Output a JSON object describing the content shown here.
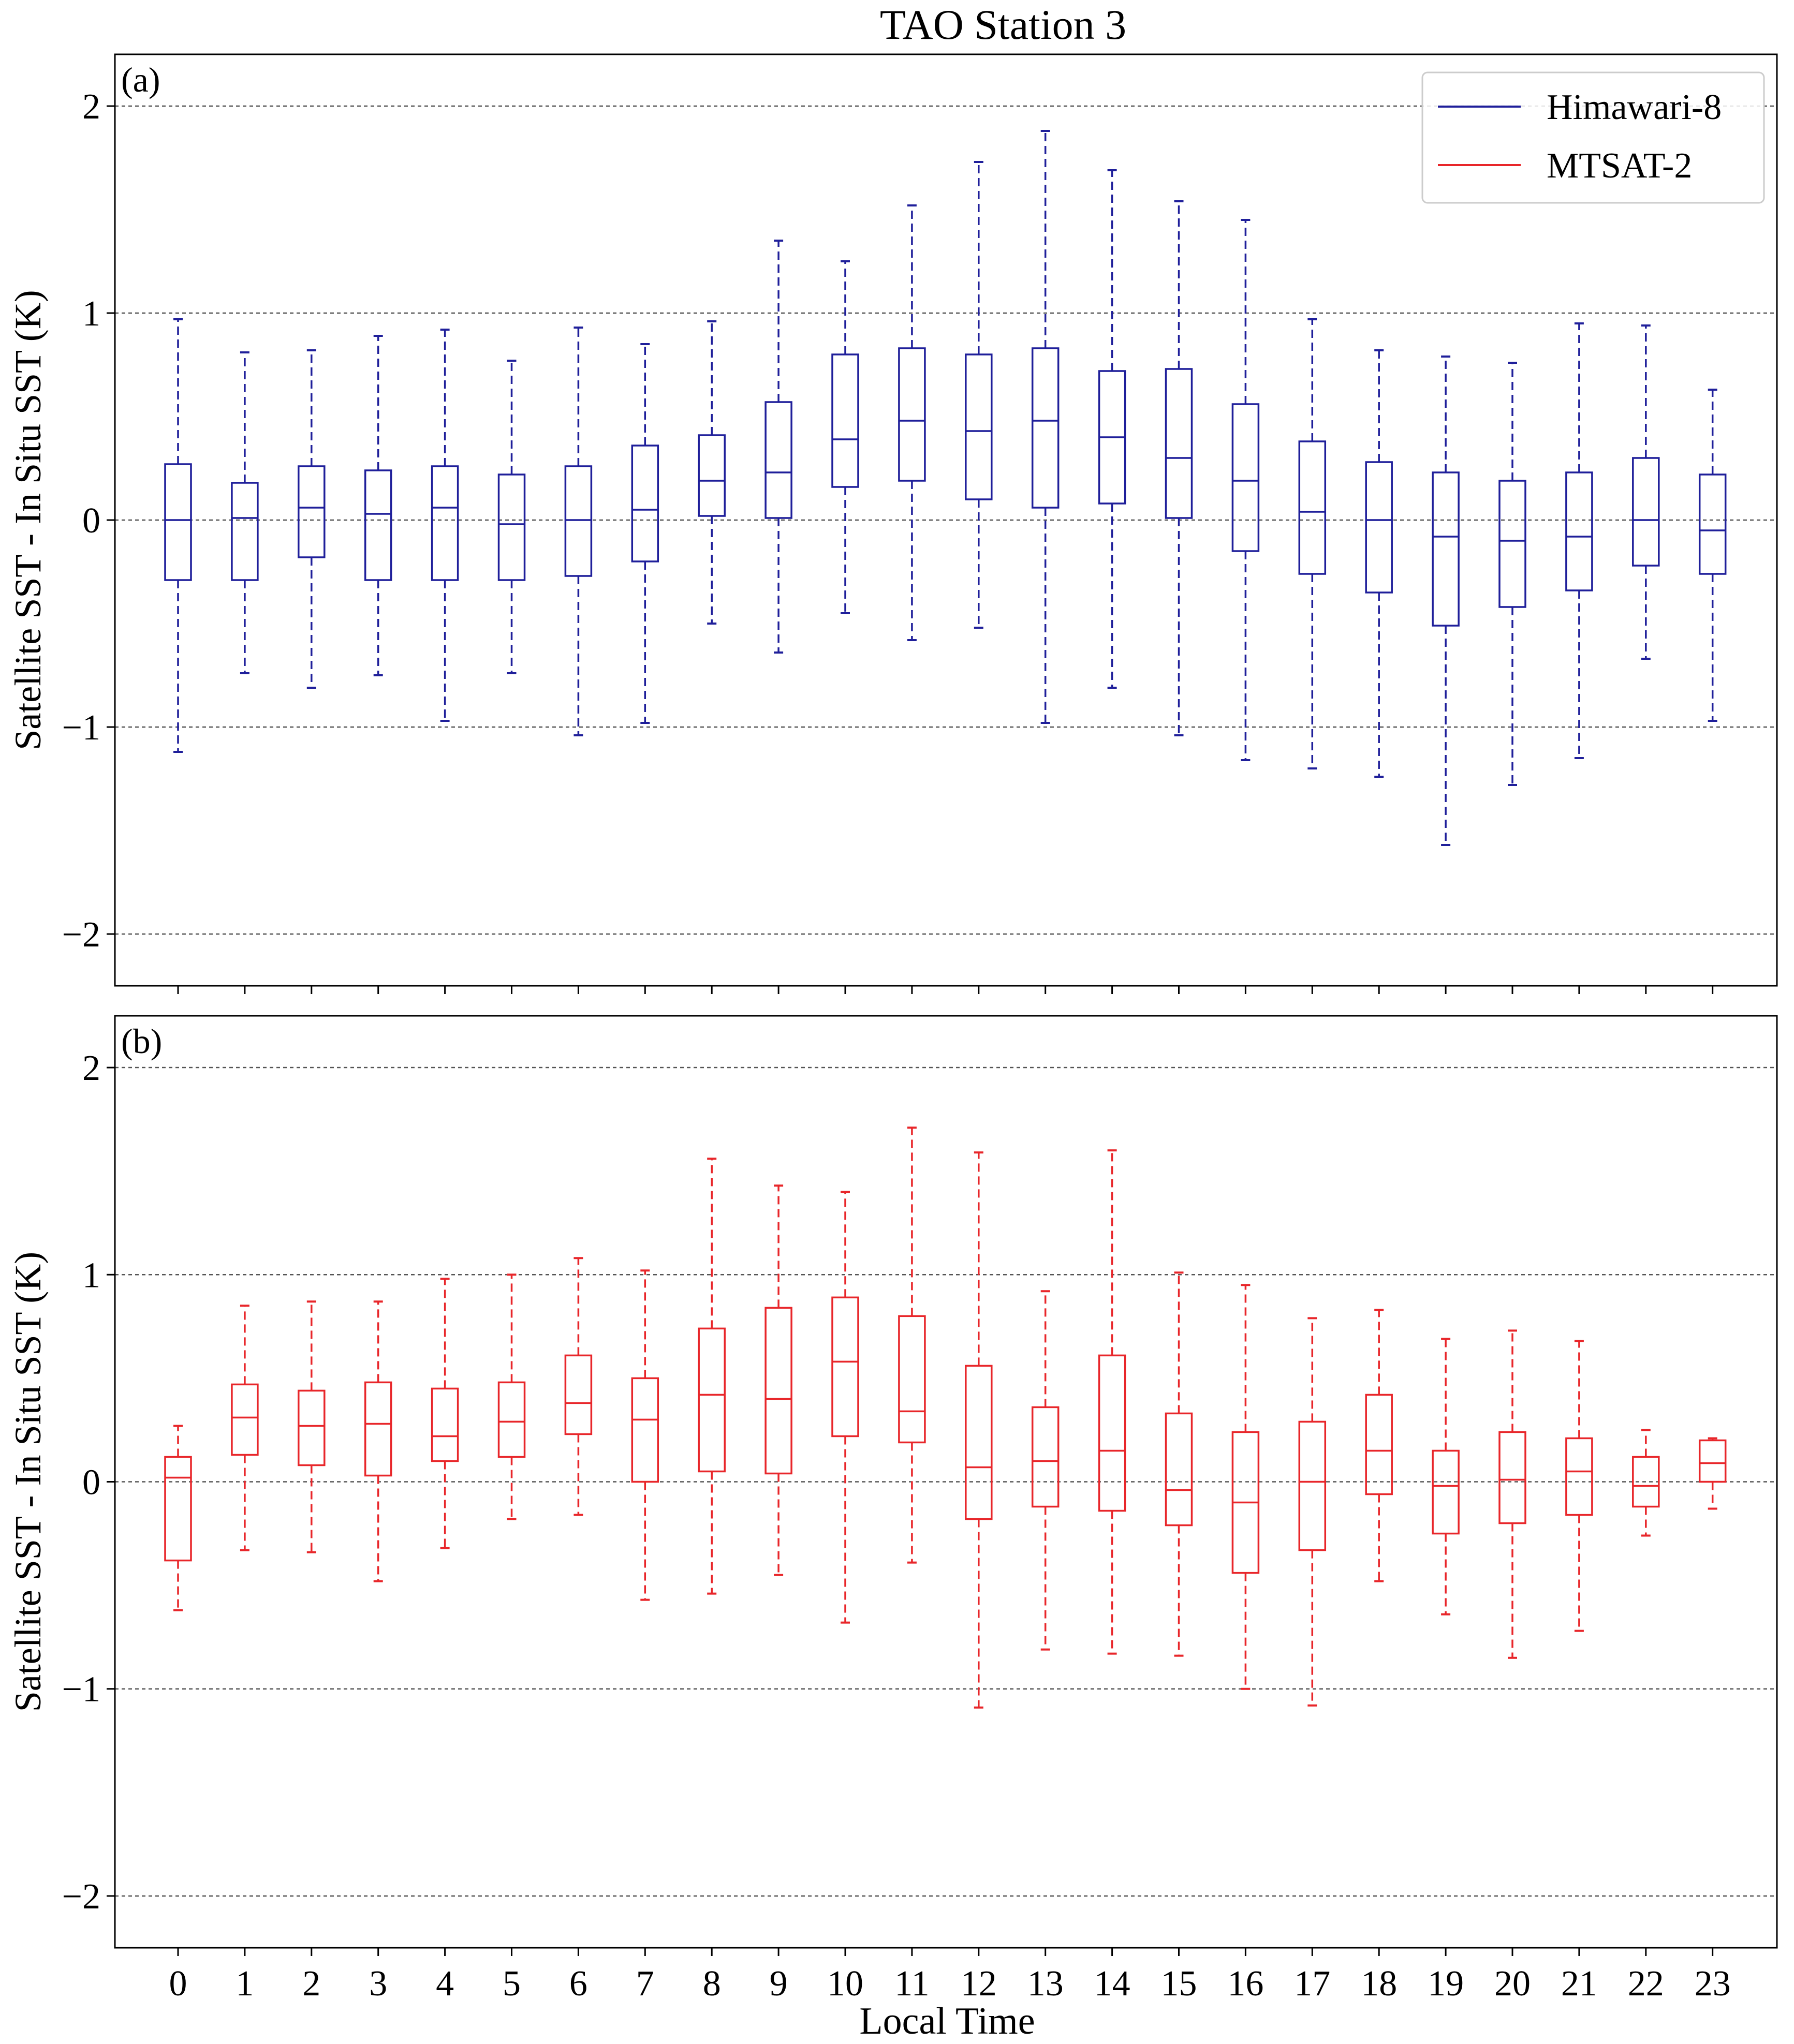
{
  "figure": {
    "title": "TAO Station 3",
    "xlabel": "Local Time",
    "legend_entries": [
      "Himawari-8",
      "MTSAT-2"
    ],
    "colors": {
      "himawari": "#1f1f9a",
      "mtsat": "#e8262a",
      "grid": "#555555",
      "axes": "#000000"
    }
  },
  "chart_data": [
    {
      "type": "box",
      "panel_label": "(a)",
      "series_name": "Himawari-8",
      "ylabel": "Satellite SST - In Situ SST (K)",
      "ylim": [
        -2.25,
        2.25
      ],
      "yticks": [
        -2,
        -1,
        0,
        1,
        2
      ],
      "ytick_labels": [
        "−2",
        "−1",
        "0",
        "1",
        "2"
      ],
      "grid": true,
      "legend_position": "top-right",
      "categories": [
        "0",
        "1",
        "2",
        "3",
        "4",
        "5",
        "6",
        "7",
        "8",
        "9",
        "10",
        "11",
        "12",
        "13",
        "14",
        "15",
        "16",
        "17",
        "18",
        "19",
        "20",
        "21",
        "22",
        "23"
      ],
      "whisker_low": [
        -1.12,
        -0.74,
        -0.81,
        -0.75,
        -0.97,
        -0.74,
        -1.04,
        -0.98,
        -0.5,
        -0.64,
        -0.45,
        -0.58,
        -0.52,
        -0.98,
        -0.81,
        -1.04,
        -1.16,
        -1.2,
        -1.24,
        -1.57,
        -1.28,
        -1.15,
        -0.67,
        -0.97
      ],
      "q1": [
        -0.29,
        -0.29,
        -0.18,
        -0.29,
        -0.29,
        -0.29,
        -0.27,
        -0.2,
        0.02,
        0.01,
        0.16,
        0.19,
        0.1,
        0.06,
        0.08,
        0.01,
        -0.15,
        -0.26,
        -0.35,
        -0.51,
        -0.42,
        -0.34,
        -0.22,
        -0.26
      ],
      "median": [
        0.0,
        0.01,
        0.06,
        0.03,
        0.06,
        -0.02,
        0.0,
        0.05,
        0.19,
        0.23,
        0.39,
        0.48,
        0.43,
        0.48,
        0.4,
        0.3,
        0.19,
        0.04,
        0.0,
        -0.08,
        -0.1,
        -0.08,
        0.0,
        -0.05
      ],
      "q3": [
        0.27,
        0.18,
        0.26,
        0.24,
        0.26,
        0.22,
        0.26,
        0.36,
        0.41,
        0.57,
        0.8,
        0.83,
        0.8,
        0.83,
        0.72,
        0.73,
        0.56,
        0.38,
        0.28,
        0.23,
        0.19,
        0.23,
        0.3,
        0.22
      ],
      "whisker_high": [
        0.97,
        0.81,
        0.82,
        0.89,
        0.92,
        0.77,
        0.93,
        0.85,
        0.96,
        1.35,
        1.25,
        1.52,
        1.73,
        1.88,
        1.69,
        1.54,
        1.45,
        0.97,
        0.82,
        0.79,
        0.76,
        0.95,
        0.94,
        0.63
      ]
    },
    {
      "type": "box",
      "panel_label": "(b)",
      "series_name": "MTSAT-2",
      "ylabel": "Satellite SST - In Situ SST (K)",
      "ylim": [
        -2.25,
        2.25
      ],
      "yticks": [
        -2,
        -1,
        0,
        1,
        2
      ],
      "ytick_labels": [
        "−2",
        "−1",
        "0",
        "1",
        "2"
      ],
      "grid": true,
      "categories": [
        "0",
        "1",
        "2",
        "3",
        "4",
        "5",
        "6",
        "7",
        "8",
        "9",
        "10",
        "11",
        "12",
        "13",
        "14",
        "15",
        "16",
        "17",
        "18",
        "19",
        "20",
        "21",
        "22",
        "23"
      ],
      "whisker_low": [
        -0.62,
        -0.33,
        -0.34,
        -0.48,
        -0.32,
        -0.18,
        -0.16,
        -0.57,
        -0.54,
        -0.45,
        -0.68,
        -0.39,
        -1.09,
        -0.81,
        -0.83,
        -0.84,
        -1.0,
        -1.08,
        -0.48,
        -0.64,
        -0.85,
        -0.72,
        -0.26,
        -0.13
      ],
      "q1": [
        -0.38,
        0.13,
        0.08,
        0.03,
        0.1,
        0.12,
        0.23,
        0.0,
        0.05,
        0.04,
        0.22,
        0.19,
        -0.18,
        -0.12,
        -0.14,
        -0.21,
        -0.44,
        -0.33,
        -0.06,
        -0.25,
        -0.2,
        -0.16,
        -0.12,
        0.0
      ],
      "median": [
        0.02,
        0.31,
        0.27,
        0.28,
        0.22,
        0.29,
        0.38,
        0.3,
        0.42,
        0.4,
        0.58,
        0.34,
        0.07,
        0.1,
        0.15,
        -0.04,
        -0.1,
        0.0,
        0.15,
        -0.02,
        0.01,
        0.05,
        -0.02,
        0.09
      ],
      "q3": [
        0.12,
        0.47,
        0.44,
        0.48,
        0.45,
        0.48,
        0.61,
        0.5,
        0.74,
        0.84,
        0.89,
        0.8,
        0.56,
        0.36,
        0.61,
        0.33,
        0.24,
        0.29,
        0.42,
        0.15,
        0.24,
        0.21,
        0.12,
        0.2
      ],
      "whisker_high": [
        0.27,
        0.85,
        0.87,
        0.87,
        0.98,
        1.0,
        1.08,
        1.02,
        1.56,
        1.43,
        1.4,
        1.71,
        1.59,
        0.92,
        1.6,
        1.01,
        0.95,
        0.79,
        0.83,
        0.69,
        0.73,
        0.68,
        0.25,
        0.21
      ]
    }
  ]
}
